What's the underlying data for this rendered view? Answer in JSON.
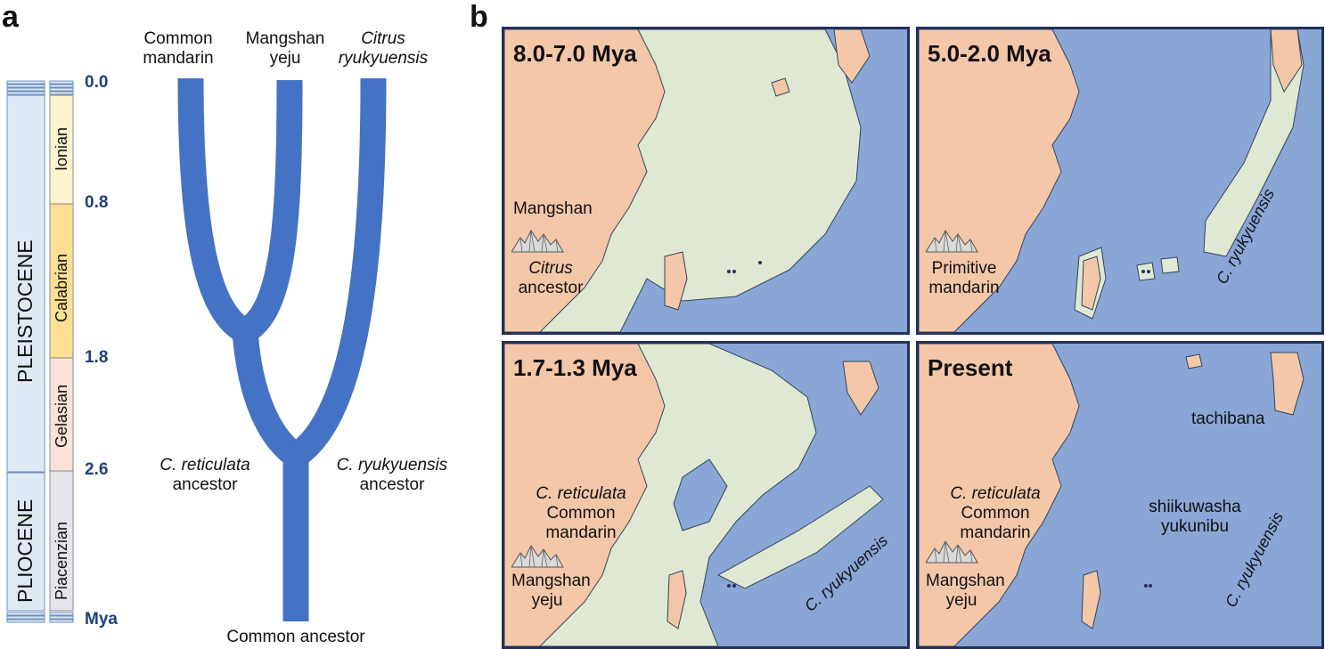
{
  "panel_a": {
    "letter": "a",
    "epochs": [
      {
        "name": "PLEISTOCENE"
      },
      {
        "name": "PLIOCENE"
      }
    ],
    "stages": [
      {
        "name": "Ionian"
      },
      {
        "name": "Calabrian"
      },
      {
        "name": "Gelasian"
      },
      {
        "name": "Piacenzian"
      }
    ],
    "ticks": [
      "0.0",
      "0.8",
      "1.8",
      "2.6",
      "Mya"
    ],
    "tips": [
      {
        "line1": "Common",
        "line2": "mandarin"
      },
      {
        "line1": "Mangshan",
        "line2": "yeju"
      },
      {
        "line1": "Citrus",
        "line2": "ryukyuensis"
      }
    ],
    "nodes": {
      "reticulata_l1": "C. reticulata",
      "reticulata_l2": "ancestor",
      "ryukyuensis_l1": "C. ryukyuensis",
      "ryukyuensis_l2": "ancestor",
      "root": "Common ancestor"
    },
    "colors": {
      "branch": "#4472c4",
      "epoch_fill": "#dde9f4",
      "ionian": "#fdf3cf",
      "calabrian": "#fbe094",
      "gelasian": "#fbe1d8",
      "piacenzian": "#e6e4ea"
    }
  },
  "panel_b": {
    "letter": "b",
    "colors": {
      "sea": "#8aa6d6",
      "land": "#f4c7a9",
      "shelf": "#dfe8d3",
      "frame": "#22305a"
    },
    "maps": [
      {
        "title": "8.0-7.0 Mya",
        "label_mountain": "Mangshan",
        "label_a1": "Citrus",
        "label_a2": "ancestor",
        "icon": "mountain-icon"
      },
      {
        "title": "5.0-2.0 Mya",
        "label_b1": "Primitive",
        "label_b2": "mandarin",
        "label_rot": "C. ryukyuensis",
        "icon": "mountain-icon"
      },
      {
        "title": "1.7-1.3 Mya",
        "label_c1": "C. reticulata",
        "label_c2": "Common mandarin",
        "label_c3": "Mangshan",
        "label_c4": "yeju",
        "label_rot": "C. ryukyuensis",
        "icon": "mountain-icon"
      },
      {
        "title": "Present",
        "label_d1": "C. reticulata",
        "label_d2": "Common mandarin",
        "label_d3": "Mangshan",
        "label_d4": "yeju",
        "label_t": "tachibana",
        "label_s1": "shiikuwasha",
        "label_s2": "yukunibu",
        "label_rot": "C. ryukyuensis",
        "icon": "mountain-icon"
      }
    ]
  }
}
